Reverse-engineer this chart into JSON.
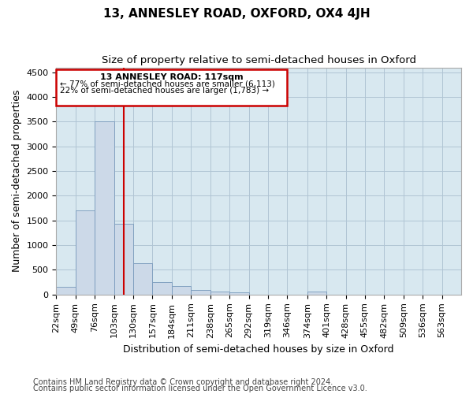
{
  "title": "13, ANNESLEY ROAD, OXFORD, OX4 4JH",
  "subtitle": "Size of property relative to semi-detached houses in Oxford",
  "xlabel": "Distribution of semi-detached houses by size in Oxford",
  "ylabel": "Number of semi-detached properties",
  "bar_color": "#ccd9e8",
  "bar_edge_color": "#7799bb",
  "vline_x": 117,
  "vline_color": "#cc0000",
  "annotation_title": "13 ANNESLEY ROAD: 117sqm",
  "annotation_line1": "← 77% of semi-detached houses are smaller (6,113)",
  "annotation_line2": "22% of semi-detached houses are larger (1,783) →",
  "annotation_box_color": "#cc0000",
  "categories": [
    "22sqm",
    "49sqm",
    "76sqm",
    "103sqm",
    "130sqm",
    "157sqm",
    "184sqm",
    "211sqm",
    "238sqm",
    "265sqm",
    "292sqm",
    "319sqm",
    "346sqm",
    "374sqm",
    "401sqm",
    "428sqm",
    "455sqm",
    "482sqm",
    "509sqm",
    "536sqm",
    "563sqm"
  ],
  "bin_edges": [
    22,
    49,
    76,
    103,
    130,
    157,
    184,
    211,
    238,
    265,
    292,
    319,
    346,
    374,
    401,
    428,
    455,
    482,
    509,
    536,
    563
  ],
  "bin_width": 27,
  "values": [
    150,
    1700,
    3500,
    1430,
    630,
    260,
    180,
    100,
    60,
    50,
    0,
    0,
    0,
    55,
    0,
    0,
    0,
    0,
    0,
    0,
    0
  ],
  "ylim": [
    0,
    4600
  ],
  "yticks": [
    0,
    500,
    1000,
    1500,
    2000,
    2500,
    3000,
    3500,
    4000,
    4500
  ],
  "grid_color": "#b0c4d4",
  "bg_color": "#d8e8f0",
  "footer1": "Contains HM Land Registry data © Crown copyright and database right 2024.",
  "footer2": "Contains public sector information licensed under the Open Government Licence v3.0.",
  "title_fontsize": 11,
  "subtitle_fontsize": 9.5,
  "axis_label_fontsize": 9,
  "tick_fontsize": 8,
  "footer_fontsize": 7
}
